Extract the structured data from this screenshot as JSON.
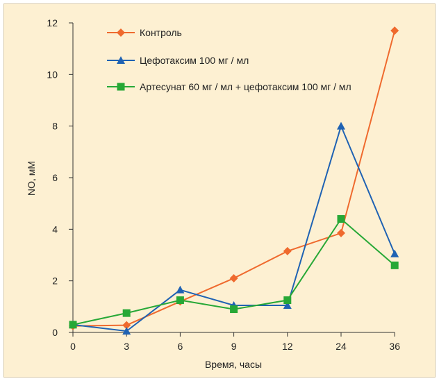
{
  "chart_data": {
    "type": "line",
    "xlabel": "Время, часы",
    "ylabel": "NO, мМ",
    "categories": [
      "0",
      "3",
      "6",
      "9",
      "12",
      "24",
      "36"
    ],
    "ylim": [
      0,
      12
    ],
    "yticks": [
      0,
      2,
      4,
      6,
      8,
      10,
      12
    ],
    "grid": false,
    "legend_position": "top-left",
    "series": [
      {
        "name": "Контроль",
        "color": "#ef6a2e",
        "marker": "diamond",
        "values": [
          0.25,
          0.28,
          1.2,
          2.1,
          3.15,
          3.85,
          11.7
        ]
      },
      {
        "name": "Цефотаксим 100 мг / мл",
        "color": "#1f62b3",
        "marker": "triangle",
        "values": [
          0.3,
          0.05,
          1.65,
          1.05,
          1.05,
          8.0,
          3.05
        ]
      },
      {
        "name": "Артесунат 60 мг / мл + цефотаксим 100 мг / мл",
        "color": "#27a836",
        "marker": "square",
        "values": [
          0.3,
          0.75,
          1.25,
          0.9,
          1.25,
          4.4,
          2.6
        ]
      }
    ]
  }
}
